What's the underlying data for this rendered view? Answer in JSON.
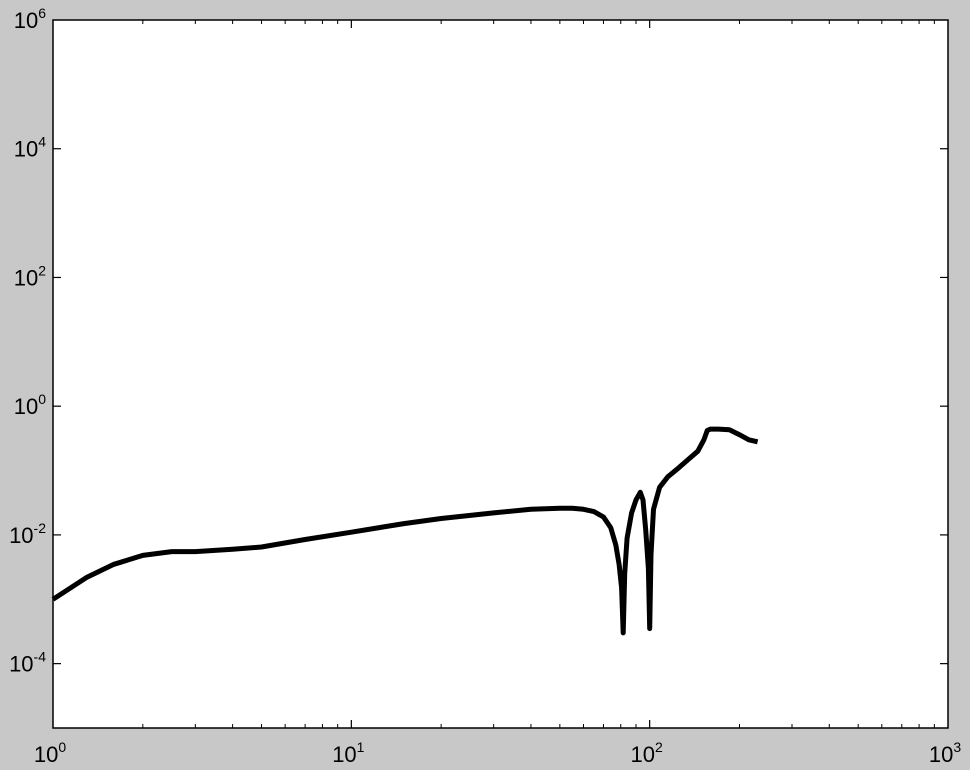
{
  "colors": {
    "figure_background": "#c8c8c8",
    "axes_background": "#ffffff",
    "line": "#000000",
    "axis": "#000000"
  },
  "chart_data": {
    "type": "line",
    "x_scale": "log",
    "y_scale": "log",
    "xlim": [
      1,
      1000
    ],
    "ylim": [
      1e-05,
      1000000
    ],
    "title": "",
    "xlabel": "",
    "ylabel": "",
    "grid": false,
    "x_ticks": [
      {
        "value": 1,
        "base": "10",
        "exp": "0"
      },
      {
        "value": 10,
        "base": "10",
        "exp": "1"
      },
      {
        "value": 100,
        "base": "10",
        "exp": "2"
      },
      {
        "value": 1000,
        "base": "10",
        "exp": "3"
      }
    ],
    "y_ticks": [
      {
        "value": 0.0001,
        "base": "10",
        "exp": "-4"
      },
      {
        "value": 0.01,
        "base": "10",
        "exp": "-2"
      },
      {
        "value": 1,
        "base": "10",
        "exp": "0"
      },
      {
        "value": 100,
        "base": "10",
        "exp": "2"
      },
      {
        "value": 10000,
        "base": "10",
        "exp": "4"
      },
      {
        "value": 1000000,
        "base": "10",
        "exp": "6"
      }
    ],
    "series": [
      {
        "x": [
          1,
          1.3,
          1.6,
          2,
          2.5,
          3,
          4,
          5,
          7,
          10,
          15,
          20,
          30,
          40,
          50,
          55,
          60,
          65,
          70,
          74,
          77,
          79,
          80.5,
          81.5,
          82.5,
          84,
          87,
          90,
          93,
          95,
          97,
          99,
          100,
          101,
          103,
          108,
          115,
          125,
          135,
          145,
          152,
          156,
          160,
          170,
          185,
          200,
          215,
          230
        ],
        "y": [
          0.001,
          0.0022,
          0.0035,
          0.0048,
          0.0055,
          0.0055,
          0.006,
          0.0065,
          0.0085,
          0.011,
          0.015,
          0.018,
          0.022,
          0.025,
          0.026,
          0.026,
          0.025,
          0.023,
          0.019,
          0.013,
          0.007,
          0.0035,
          0.0015,
          0.0003,
          0.0025,
          0.009,
          0.022,
          0.035,
          0.046,
          0.035,
          0.012,
          0.003,
          0.00035,
          0.005,
          0.025,
          0.055,
          0.08,
          0.11,
          0.15,
          0.2,
          0.3,
          0.42,
          0.44,
          0.44,
          0.43,
          0.36,
          0.3,
          0.28
        ]
      }
    ]
  }
}
